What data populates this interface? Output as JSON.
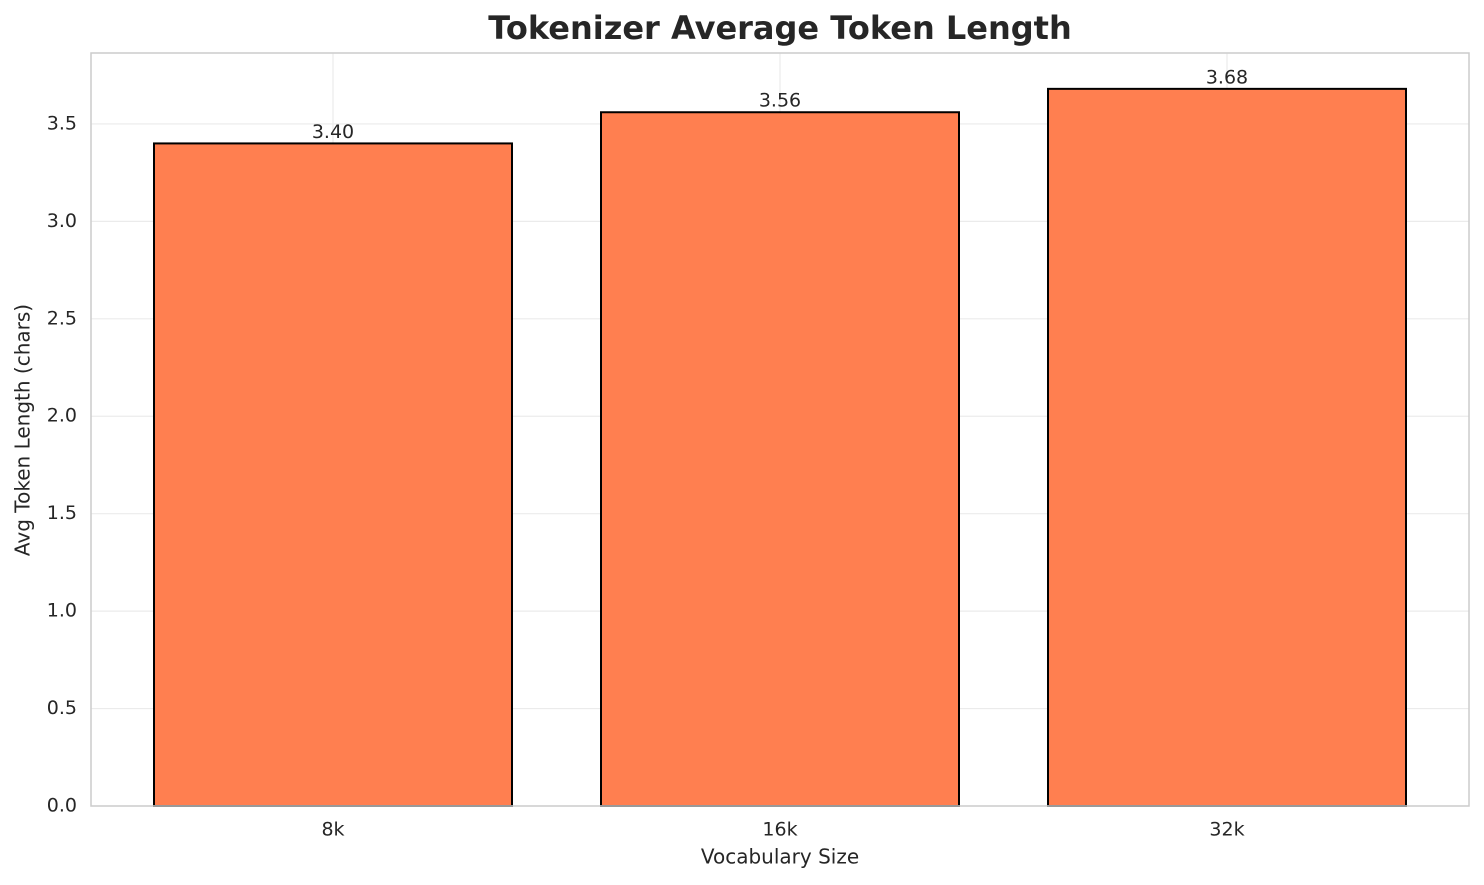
{
  "chart_data": {
    "type": "bar",
    "title": "Tokenizer Average Token Length",
    "x_label": "Vocabulary Size",
    "y_label": "Avg Token Length (chars)",
    "categories": [
      "8k",
      "16k",
      "32k"
    ],
    "values": [
      3.4,
      3.56,
      3.68
    ],
    "value_labels": [
      "3.40",
      "3.56",
      "3.68"
    ],
    "color": "#ff7f50",
    "edge_color": "#000000",
    "ylim": [
      0,
      3.864
    ],
    "yticks": [
      {
        "value": 0,
        "label": "0.0"
      },
      0.5,
      {
        "value": 1,
        "label": "1.0"
      },
      1.5,
      {
        "value": 2,
        "label": "2.0"
      },
      2.5,
      {
        "value": 3,
        "label": "3.0"
      },
      3.5
    ],
    "grid": true
  }
}
